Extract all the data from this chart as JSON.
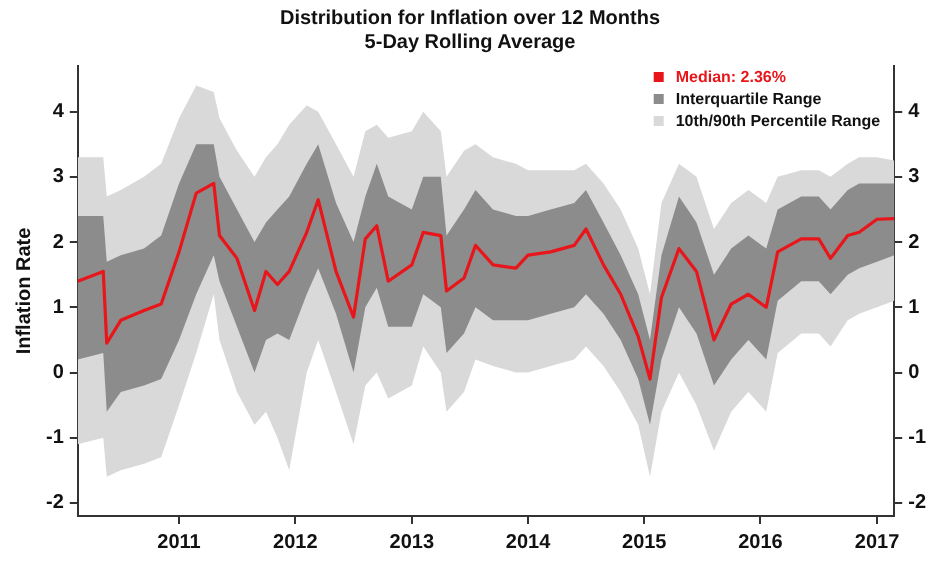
{
  "chart_data": {
    "type": "line",
    "title": "Distribution for Inflation over 12 Months",
    "subtitle": "5-Day Rolling Average",
    "ylabel": "Inflation Rate",
    "x": [
      "2010-02-17",
      "2010-05-08",
      "2010-05-19",
      "2010-07-02",
      "2010-09-13",
      "2010-11-06",
      "2011-01-01",
      "2011-02-24",
      "2011-04-20",
      "2011-05-08",
      "2011-07-02",
      "2011-08-26",
      "2011-10-01",
      "2011-11-06",
      "2011-12-13",
      "2012-02-06",
      "2012-03-13",
      "2012-05-08",
      "2012-07-02",
      "2012-08-08",
      "2012-09-13",
      "2012-10-19",
      "2013-01-01",
      "2013-02-06",
      "2013-04-02",
      "2013-04-20",
      "2013-06-14",
      "2013-07-20",
      "2013-09-13",
      "2013-11-24",
      "2014-01-01",
      "2014-03-13",
      "2014-05-26",
      "2014-07-02",
      "2014-08-26",
      "2014-10-19",
      "2014-12-13",
      "2015-01-19",
      "2015-02-24",
      "2015-04-20",
      "2015-06-14",
      "2015-08-08",
      "2015-10-01",
      "2015-11-24",
      "2016-01-19",
      "2016-02-24",
      "2016-05-08",
      "2016-07-02",
      "2016-08-08",
      "2016-10-01",
      "2016-11-06",
      "2017-01-01",
      "2017-02-24"
    ],
    "series": [
      {
        "name": "10th/90th Percentile Range",
        "type": "area",
        "color": "#d9d9d9",
        "values": [
          null,
          null,
          null,
          null,
          null,
          null,
          null,
          null,
          null,
          null,
          null,
          null,
          null,
          null,
          null,
          null,
          null,
          null,
          null,
          null,
          null,
          null,
          null,
          null,
          null,
          null,
          null,
          null,
          null,
          null,
          null,
          null,
          null,
          null,
          null,
          null,
          null,
          null,
          null,
          null,
          null,
          null,
          null,
          null,
          null,
          null,
          null,
          null,
          null,
          null,
          null,
          null,
          null
        ],
        "lower": [
          -1.1,
          -1.0,
          -1.6,
          -1.5,
          -1.4,
          -1.3,
          -0.5,
          0.3,
          1.2,
          0.5,
          -0.3,
          -0.8,
          -0.6,
          -1.0,
          -1.5,
          0.0,
          0.5,
          -0.3,
          -1.1,
          -0.2,
          0.0,
          -0.4,
          -0.2,
          0.4,
          0.0,
          -0.6,
          -0.3,
          0.2,
          0.1,
          0.0,
          0.0,
          0.1,
          0.2,
          0.4,
          0.1,
          -0.3,
          -0.8,
          -1.6,
          -0.6,
          0.0,
          -0.5,
          -1.2,
          -0.6,
          -0.3,
          -0.6,
          0.3,
          0.6,
          0.6,
          0.4,
          0.8,
          0.9,
          1.0,
          1.1
        ],
        "upper": [
          3.3,
          3.3,
          2.7,
          2.8,
          3.0,
          3.2,
          3.9,
          4.4,
          4.3,
          3.9,
          3.4,
          3.0,
          3.3,
          3.5,
          3.8,
          4.1,
          4.0,
          3.5,
          3.0,
          3.7,
          3.8,
          3.6,
          3.7,
          4.0,
          3.7,
          3.0,
          3.4,
          3.5,
          3.3,
          3.2,
          3.1,
          3.1,
          3.1,
          3.2,
          2.9,
          2.5,
          1.9,
          1.2,
          2.6,
          3.2,
          3.0,
          2.2,
          2.6,
          2.8,
          2.6,
          3.0,
          3.1,
          3.1,
          3.0,
          3.2,
          3.3,
          3.3,
          3.25
        ]
      },
      {
        "name": "Interquartile Range",
        "type": "area",
        "color": "#8c8c8c",
        "values": [
          null,
          null,
          null,
          null,
          null,
          null,
          null,
          null,
          null,
          null,
          null,
          null,
          null,
          null,
          null,
          null,
          null,
          null,
          null,
          null,
          null,
          null,
          null,
          null,
          null,
          null,
          null,
          null,
          null,
          null,
          null,
          null,
          null,
          null,
          null,
          null,
          null,
          null,
          null,
          null,
          null,
          null,
          null,
          null,
          null,
          null,
          null,
          null,
          null,
          null,
          null,
          null,
          null
        ],
        "lower": [
          0.2,
          0.3,
          -0.6,
          -0.3,
          -0.2,
          -0.1,
          0.5,
          1.2,
          1.8,
          1.4,
          0.7,
          0.0,
          0.5,
          0.6,
          0.5,
          1.2,
          1.6,
          0.9,
          0.0,
          1.0,
          1.3,
          0.7,
          0.7,
          1.2,
          1.0,
          0.3,
          0.6,
          1.0,
          0.8,
          0.8,
          0.8,
          0.9,
          1.0,
          1.2,
          0.9,
          0.5,
          -0.1,
          -0.8,
          0.2,
          1.0,
          0.6,
          -0.2,
          0.2,
          0.5,
          0.2,
          1.1,
          1.4,
          1.4,
          1.2,
          1.5,
          1.6,
          1.7,
          1.8
        ],
        "upper": [
          2.4,
          2.4,
          1.7,
          1.8,
          1.9,
          2.1,
          2.9,
          3.5,
          3.5,
          3.0,
          2.5,
          2.0,
          2.3,
          2.5,
          2.7,
          3.2,
          3.5,
          2.6,
          2.0,
          2.7,
          3.2,
          2.7,
          2.5,
          3.0,
          3.0,
          2.1,
          2.5,
          2.8,
          2.5,
          2.4,
          2.4,
          2.5,
          2.6,
          2.8,
          2.3,
          1.8,
          1.2,
          0.5,
          1.8,
          2.7,
          2.3,
          1.5,
          1.9,
          2.1,
          1.9,
          2.5,
          2.7,
          2.7,
          2.5,
          2.8,
          2.9,
          2.9,
          2.9
        ]
      },
      {
        "name": "Median: 2.36%",
        "color": "#e8161b",
        "values": [
          1.4,
          1.55,
          0.45,
          0.8,
          0.95,
          1.05,
          1.85,
          2.75,
          2.9,
          2.1,
          1.75,
          0.95,
          1.55,
          1.35,
          1.55,
          2.15,
          2.65,
          1.55,
          0.85,
          2.05,
          2.25,
          1.4,
          1.65,
          2.15,
          2.1,
          1.25,
          1.45,
          1.95,
          1.65,
          1.6,
          1.8,
          1.85,
          1.95,
          2.2,
          1.65,
          1.2,
          0.55,
          -0.1,
          1.15,
          1.9,
          1.55,
          0.5,
          1.05,
          1.2,
          1.0,
          1.85,
          2.05,
          2.05,
          1.75,
          2.1,
          2.15,
          2.35,
          2.36
        ]
      }
    ],
    "xlim": [
      "2010-02-17",
      "2017-02-24"
    ],
    "xticks": [
      {
        "value": "2011-01-01",
        "label": "2011"
      },
      {
        "value": "2012-01-01",
        "label": "2012"
      },
      {
        "value": "2013-01-01",
        "label": "2013"
      },
      {
        "value": "2014-01-01",
        "label": "2014"
      },
      {
        "value": "2015-01-01",
        "label": "2015"
      },
      {
        "value": "2016-01-01",
        "label": "2016"
      },
      {
        "value": "2017-01-01",
        "label": "2017"
      }
    ],
    "ylim": [
      -2.2,
      4.7
    ],
    "yticks": [
      -2,
      -1,
      0,
      1,
      2,
      3,
      4
    ],
    "y2lim": [
      -2.2,
      4.7
    ],
    "y2ticks": [
      -2,
      -1,
      0,
      1,
      2,
      3,
      4
    ],
    "grid": false,
    "legend": "top right",
    "marker": "none",
    "line_style": "solid"
  }
}
